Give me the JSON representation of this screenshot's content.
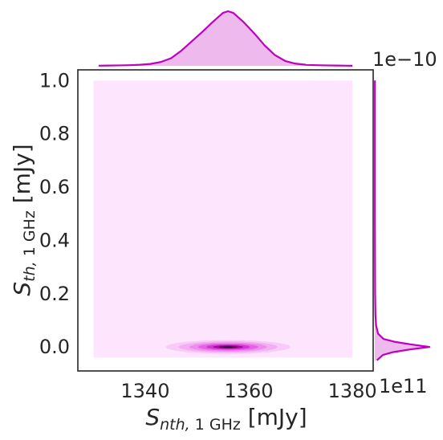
{
  "chart_data": {
    "type": "kde-joint",
    "title": "",
    "xlabel": "S_{nth, 1 GHz} [mJy]",
    "xlabel_parts": {
      "symbol": "S",
      "subscript_italic": "nth,",
      "subscript_roman": " 1 GHz",
      "unit": " [mJy]"
    },
    "ylabel": "S_{th, 1 GHz} [mJy]",
    "ylabel_parts": {
      "symbol": "S",
      "subscript_italic": "th,",
      "subscript_roman": " 1 GHz",
      "unit": " [mJy]"
    },
    "xlim": [
      1327,
      1384
    ],
    "ylim": [
      -0.09,
      1.04
    ],
    "y_multiplier_label": "1e−10",
    "x_multiplier_label": "1e11",
    "x_ticks": [
      1340,
      1360,
      1380
    ],
    "x_tick_labels": [
      "1340",
      "1360",
      "1380"
    ],
    "y_ticks": [
      0.0,
      0.2,
      0.4,
      0.6,
      0.8,
      1.0
    ],
    "y_tick_labels": [
      "0.0",
      "0.2",
      "0.4",
      "0.6",
      "0.8",
      "1.0"
    ],
    "grid": false,
    "color": "#bf00bf",
    "joint": {
      "background_region": {
        "x": [
          1330,
          1380
        ],
        "y": [
          -0.04,
          1.0
        ],
        "color": "#fde6fd"
      },
      "peak": {
        "x": 1356,
        "y": 0.0
      },
      "contour_levels": [
        {
          "x_halfwidth": 12,
          "y_halfwidth": 0.026,
          "color": "#f7caf7"
        },
        {
          "x_halfwidth": 9.5,
          "y_halfwidth": 0.021,
          "color": "#f3aef3"
        },
        {
          "x_halfwidth": 7.5,
          "y_halfwidth": 0.017,
          "color": "#ee8cee"
        },
        {
          "x_halfwidth": 5.8,
          "y_halfwidth": 0.013,
          "color": "#e462e4"
        },
        {
          "x_halfwidth": 4.2,
          "y_halfwidth": 0.0095,
          "color": "#d433d4"
        },
        {
          "x_halfwidth": 2.9,
          "y_halfwidth": 0.0065,
          "color": "#a010a0"
        },
        {
          "x_halfwidth": 1.8,
          "y_halfwidth": 0.004,
          "color": "#5a0a5a"
        },
        {
          "x_halfwidth": 0.9,
          "y_halfwidth": 0.002,
          "color": "#1a001a"
        }
      ]
    },
    "marginal_x": {
      "x": [
        1331,
        1333,
        1335,
        1337,
        1339,
        1341,
        1343,
        1345,
        1347,
        1349,
        1351,
        1353,
        1355,
        1356,
        1357,
        1359,
        1361,
        1363,
        1365,
        1367,
        1369,
        1371,
        1373,
        1375,
        1377,
        1379,
        1380
      ],
      "density": [
        0.003,
        0.005,
        0.008,
        0.012,
        0.02,
        0.035,
        0.07,
        0.14,
        0.28,
        0.45,
        0.62,
        0.8,
        0.97,
        1.0,
        0.97,
        0.8,
        0.6,
        0.38,
        0.2,
        0.09,
        0.04,
        0.02,
        0.012,
        0.008,
        0.005,
        0.003,
        0.002
      ]
    },
    "marginal_y": {
      "y": [
        -0.05,
        -0.03,
        -0.02,
        -0.01,
        0.0,
        0.01,
        0.02,
        0.03,
        0.05,
        0.08,
        0.12,
        0.2,
        0.35,
        0.5,
        0.65,
        0.8,
        0.9,
        1.0
      ],
      "density": [
        0.04,
        0.15,
        0.32,
        0.62,
        1.0,
        0.65,
        0.35,
        0.16,
        0.06,
        0.025,
        0.012,
        0.006,
        0.004,
        0.003,
        0.003,
        0.003,
        0.003,
        0.003
      ]
    }
  }
}
